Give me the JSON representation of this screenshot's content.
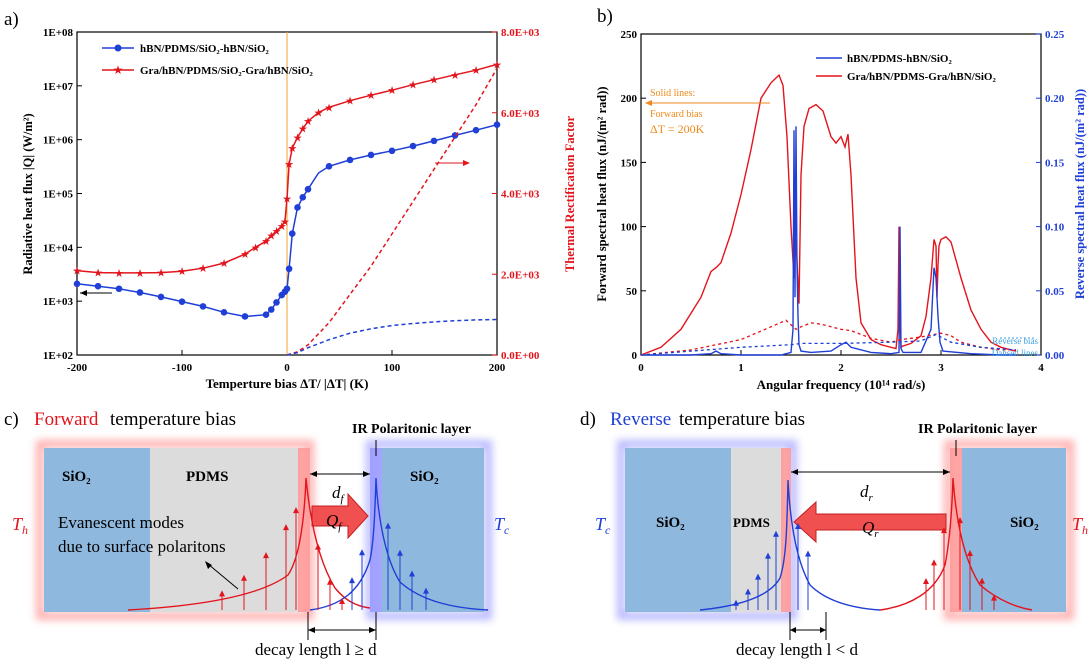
{
  "panel_a": {
    "label": "a)",
    "y_left_label": "Radiative heat flux |Q| (W/m²)",
    "y_right_label": "Thermal Rectification Factor",
    "x_label": "Temperture bias ΔT/ |ΔT| (K)",
    "x_ticks": [
      "-200",
      "-100",
      "0",
      "100",
      "200"
    ],
    "y_left_ticks": [
      "1E+02",
      "1E+03",
      "1E+04",
      "1E+05",
      "1E+06",
      "1E+07",
      "1E+08"
    ],
    "y_right_ticks": [
      "0.0E+00",
      "2.0E+03",
      "4.0E+03",
      "6.0E+03",
      "8.0E+03"
    ],
    "colors": {
      "series1": "#1f3fd6",
      "series2": "#e3141c",
      "zero_line": "#f4a235"
    }
  },
  "panel_b": {
    "label": "b)",
    "y_left_label": "Forward spectral heat flux (nJ/(m² rad))",
    "y_right_label": "Reverse spectral heat flux (nJ/(m² rad))",
    "x_label": "Angular frequency (10¹⁴ rad/s)",
    "x_ticks": [
      "0",
      "1",
      "2",
      "3",
      "4"
    ],
    "y_left_ticks": [
      "0",
      "50",
      "100",
      "150",
      "200",
      "250"
    ],
    "y_right_ticks": [
      "0.00",
      "0.05",
      "0.10",
      "0.15",
      "0.20",
      "0.25"
    ],
    "legend": [
      "hBN/PDMS-hBN/SiO₂",
      "Gra/hBN/PDMS-Gra/hBN/SiO₂"
    ],
    "annotation_forward": [
      "Solid lines:",
      "Forward bias",
      "ΔT = 200K"
    ],
    "annotation_reverse": [
      "Reverse bias",
      "Dahsed lines"
    ]
  },
  "panel_c": {
    "label": "c)",
    "title_colored": "Forward",
    "title_rest": " temperature bias",
    "polaritonic": "IR Polaritonic layer",
    "layer_left": "SiO₂",
    "layer_mid": "PDMS",
    "layer_right": "SiO₂",
    "gap": "d",
    "gap_sub": "f",
    "th": "T",
    "th_sub": "h",
    "tc": "T",
    "tc_sub": "c",
    "evanescent": [
      "Evanescent modes",
      "due to surface polaritons"
    ],
    "q": "Q",
    "q_sub": "f",
    "decay": "decay length l ≥ d"
  },
  "panel_d": {
    "label": "d)",
    "title_colored": "Reverse",
    "title_rest": " temperature bias",
    "polaritonic": "IR Polaritonic layer",
    "layer_left": "SiO₂",
    "layer_mid": "PDMS",
    "layer_right": "SiO₂",
    "gap": "d",
    "gap_sub": "r",
    "tc": "T",
    "tc_sub": "c",
    "th": "T",
    "th_sub": "h",
    "q": "Q",
    "q_sub": "r",
    "decay": "decay length l < d"
  },
  "chart_data": [
    {
      "type": "line",
      "panel": "a",
      "xlim": [
        -200,
        200
      ],
      "ylim_left": [
        100,
        100000000
      ],
      "y_scale_left": "log",
      "ylim_right": [
        0,
        8000
      ],
      "series": [
        {
          "name": "hBN/PDMS/SiO₂-hBN/SiO₂",
          "axis": "left",
          "style": "solid-circle",
          "x": [
            -200,
            -180,
            -160,
            -140,
            -120,
            -100,
            -80,
            -60,
            -40,
            -20,
            -15,
            -10,
            -5,
            -2,
            0,
            2,
            5,
            10,
            15,
            20,
            30,
            40,
            60,
            80,
            100,
            120,
            140,
            160,
            180,
            200
          ],
          "y": [
            2100,
            1900,
            1700,
            1450,
            1200,
            980,
            800,
            620,
            520,
            560,
            700,
            950,
            1300,
            1500,
            1700,
            4000,
            18000,
            55000,
            85000,
            120000,
            240000,
            320000,
            420000,
            520000,
            620000,
            760000,
            950000,
            1200000,
            1500000,
            1900000
          ]
        },
        {
          "name": "Gra/hBN/PDMS/SiO₂-Gra/hBN/SiO₂",
          "axis": "left",
          "style": "solid-star",
          "x": [
            -200,
            -180,
            -160,
            -140,
            -120,
            -100,
            -80,
            -60,
            -40,
            -30,
            -20,
            -15,
            -10,
            -5,
            -2,
            0,
            2,
            5,
            10,
            15,
            20,
            30,
            40,
            60,
            80,
            100,
            120,
            140,
            160,
            180,
            200
          ],
          "y": [
            3700,
            3400,
            3350,
            3350,
            3400,
            3600,
            4100,
            5100,
            7500,
            10000,
            13000,
            16500,
            20000,
            25000,
            30000,
            80000,
            350000,
            700000,
            1100000,
            1600000,
            2200000,
            3200000,
            4000000,
            5300000,
            6700000,
            8300000,
            10500000,
            13000000,
            16000000,
            19500000,
            25000000
          ]
        },
        {
          "name": "",
          "axis": "right",
          "style": "dashed",
          "color": "#e3141c",
          "x": [
            0,
            10,
            20,
            40,
            60,
            80,
            100,
            120,
            140,
            160,
            180,
            200
          ],
          "y": [
            0,
            80,
            250,
            800,
            1500,
            2200,
            3000,
            3800,
            4600,
            5400,
            6200,
            7100
          ]
        },
        {
          "name": "",
          "axis": "right",
          "style": "dashed",
          "color": "#1f3fd6",
          "x": [
            0,
            10,
            20,
            40,
            60,
            80,
            100,
            120,
            140,
            160,
            180,
            200
          ],
          "y": [
            0,
            60,
            180,
            380,
            540,
            650,
            730,
            780,
            820,
            850,
            870,
            880
          ]
        }
      ]
    },
    {
      "type": "line",
      "panel": "b",
      "xlim": [
        0,
        4
      ],
      "ylim_left": [
        0,
        250
      ],
      "ylim_right": [
        0,
        0.25
      ],
      "series": [
        {
          "name": "Gra/hBN/PDMS-Gra/hBN/SiO₂",
          "axis": "left",
          "style": "solid",
          "color": "#e3141c",
          "x": [
            0,
            0.2,
            0.4,
            0.6,
            0.7,
            0.75,
            0.8,
            0.9,
            1.0,
            1.1,
            1.2,
            1.3,
            1.38,
            1.42,
            1.46,
            1.5,
            1.53,
            1.55,
            1.58,
            1.6,
            1.63,
            1.68,
            1.75,
            1.82,
            1.9,
            1.95,
            2.0,
            2.04,
            2.07,
            2.1,
            2.15,
            2.2,
            2.3,
            2.4,
            2.5,
            2.55,
            2.57,
            2.58,
            2.59,
            2.6,
            2.62,
            2.7,
            2.8,
            2.85,
            2.9,
            2.93,
            2.95,
            2.96,
            2.97,
            2.98,
            3.0,
            3.05,
            3.1,
            3.2,
            3.3,
            3.4,
            3.5,
            3.6,
            3.7,
            3.75
          ],
          "y": [
            0,
            6,
            20,
            45,
            65,
            68,
            72,
            95,
            125,
            160,
            200,
            212,
            218,
            210,
            170,
            100,
            60,
            90,
            40,
            140,
            178,
            192,
            195,
            190,
            170,
            165,
            170,
            162,
            172,
            140,
            60,
            25,
            12,
            8,
            6,
            5,
            20,
            100,
            25,
            6,
            7,
            9,
            15,
            30,
            60,
            90,
            85,
            45,
            70,
            85,
            90,
            92,
            88,
            60,
            35,
            20,
            10,
            6,
            4,
            3
          ]
        },
        {
          "name": "hBN/PDMS-hBN/SiO₂",
          "axis": "left",
          "style": "solid",
          "color": "#1f3fd6",
          "x": [
            0,
            0.5,
            0.7,
            0.75,
            0.8,
            1.0,
            1.4,
            1.5,
            1.52,
            1.53,
            1.54,
            1.55,
            1.56,
            1.57,
            1.58,
            1.6,
            1.7,
            1.9,
            2.0,
            2.05,
            2.1,
            2.3,
            2.5,
            2.58,
            2.59,
            2.6,
            2.62,
            2.8,
            2.9,
            2.93,
            2.95,
            2.97,
            2.99,
            3.02,
            3.3,
            3.6,
            3.75
          ],
          "y": [
            0,
            0,
            1,
            3,
            1,
            0,
            0,
            2,
            20,
            175,
            45,
            178,
            70,
            30,
            8,
            3,
            2,
            3,
            8,
            10,
            6,
            2,
            1,
            2,
            100,
            5,
            2,
            2,
            20,
            68,
            60,
            30,
            10,
            3,
            1,
            0,
            0
          ]
        },
        {
          "name": "",
          "axis": "right",
          "style": "dashed",
          "color": "#e3141c",
          "x": [
            0,
            0.5,
            1.0,
            1.3,
            1.45,
            1.55,
            1.6,
            1.7,
            1.8,
            1.9,
            2.0,
            2.1,
            2.3,
            2.5,
            2.6,
            2.8,
            3.0,
            3.1,
            3.2,
            3.4,
            3.6,
            3.75
          ],
          "y": [
            0,
            0.004,
            0.012,
            0.022,
            0.027,
            0.02,
            0.022,
            0.025,
            0.024,
            0.022,
            0.02,
            0.019,
            0.013,
            0.01,
            0.012,
            0.014,
            0.017,
            0.015,
            0.01,
            0.006,
            0.004,
            0.004
          ]
        },
        {
          "name": "",
          "axis": "right",
          "style": "dashed",
          "color": "#1f3fd6",
          "x": [
            0,
            0.5,
            1.0,
            1.5,
            1.6,
            2.0,
            2.5,
            2.8,
            2.95,
            3.1,
            3.4,
            3.75
          ],
          "y": [
            0,
            0.003,
            0.006,
            0.008,
            0.009,
            0.009,
            0.01,
            0.011,
            0.016,
            0.01,
            0.006,
            0.004
          ]
        }
      ]
    }
  ]
}
